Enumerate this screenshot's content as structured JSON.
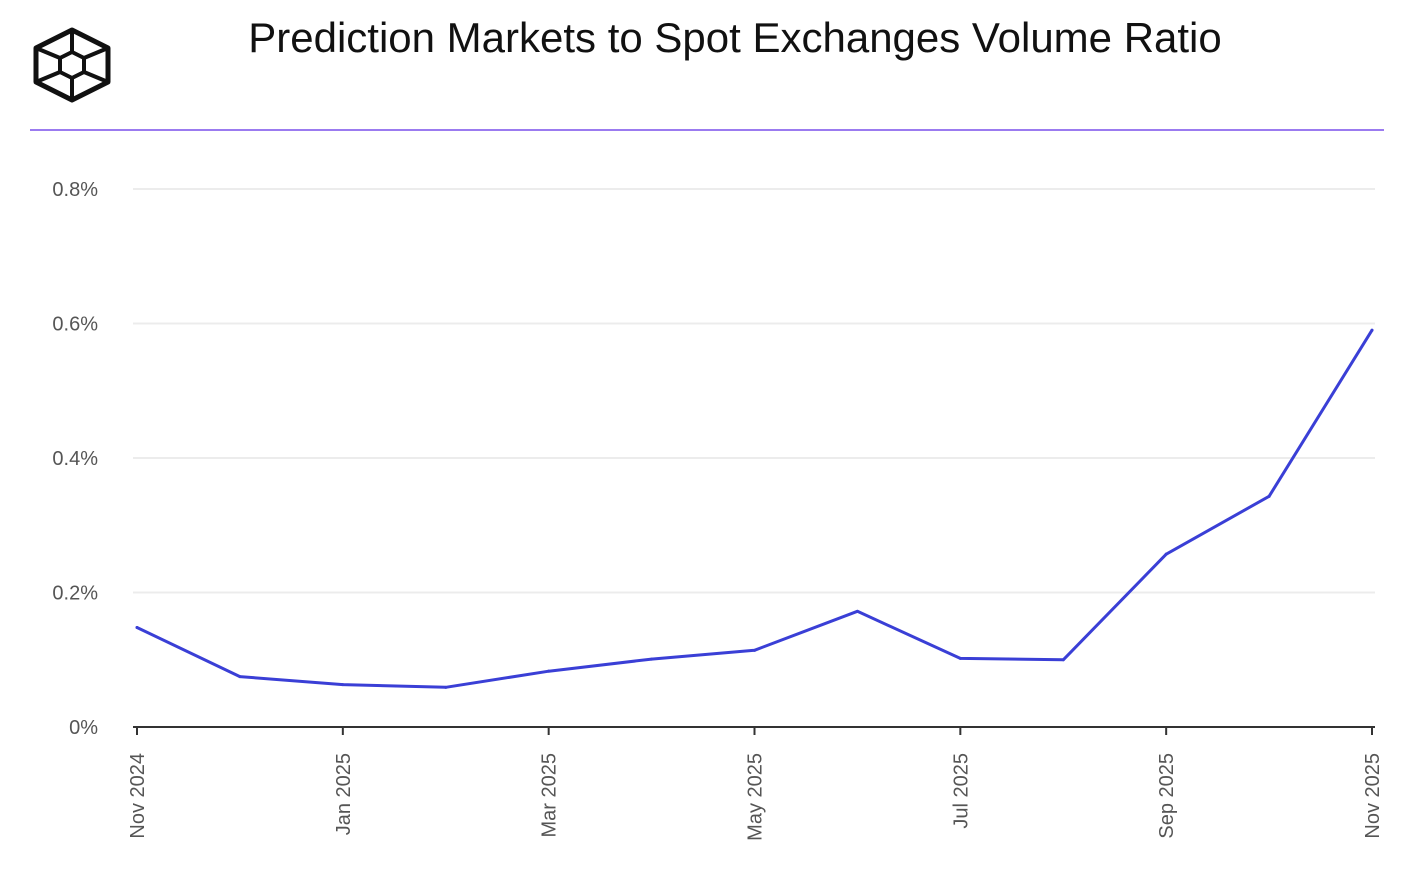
{
  "header": {
    "title": "Prediction Markets to Spot Exchanges Volume Ratio",
    "logo_icon": "cube-logo-icon",
    "rule_color": "#9b7bf0"
  },
  "chart_data": {
    "type": "line",
    "title": "Prediction Markets to Spot Exchanges Volume Ratio",
    "xlabel": "",
    "ylabel": "",
    "x": [
      "Nov 2024",
      "Dec 2024",
      "Jan 2025",
      "Feb 2025",
      "Mar 2025",
      "Apr 2025",
      "May 2025",
      "Jun 2025",
      "Jul 2025",
      "Aug 2025",
      "Sep 2025",
      "Oct 2025",
      "Nov 2025"
    ],
    "x_tick_labels": [
      "Nov 2024",
      "Jan 2025",
      "Mar 2025",
      "May 2025",
      "Jul 2025",
      "Sep 2025",
      "Nov 2025"
    ],
    "y_ticks": [
      0,
      0.2,
      0.4,
      0.6,
      0.8
    ],
    "y_tick_labels": [
      "0%",
      "0.2%",
      "0.4%",
      "0.6%",
      "0.8%"
    ],
    "ylim": [
      0,
      0.8
    ],
    "grid": true,
    "series": [
      {
        "values": [
          0.148,
          0.075,
          0.063,
          0.059,
          0.083,
          0.101,
          0.114,
          0.172,
          0.102,
          0.1,
          0.257,
          0.343,
          0.59
        ],
        "color": "#3a3fd6"
      }
    ]
  }
}
